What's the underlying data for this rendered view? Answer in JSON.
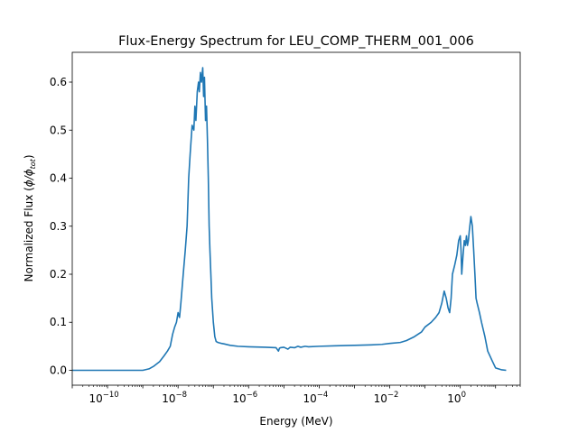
{
  "chart_data": {
    "type": "line",
    "title": "Flux-Energy Spectrum for LEU_COMP_THERM_001_006",
    "xlabel": "Energy (MeV)",
    "ylabel_prefix": "Normalized Flux (",
    "ylabel_math": "ϕ/ϕ",
    "ylabel_sub": "tot",
    "ylabel_suffix": ")",
    "x_scale": "log",
    "xlim": [
      1e-11,
      50
    ],
    "ylim": [
      -0.031,
      0.662
    ],
    "grid": false,
    "line_color": "#1f77b4",
    "x_ticks": [
      {
        "value": 1e-10,
        "base": "10",
        "exp": "−10"
      },
      {
        "value": 1e-08,
        "base": "10",
        "exp": "−8"
      },
      {
        "value": 1e-06,
        "base": "10",
        "exp": "−6"
      },
      {
        "value": 0.0001,
        "base": "10",
        "exp": "−4"
      },
      {
        "value": 0.01,
        "base": "10",
        "exp": "−2"
      },
      {
        "value": 1,
        "base": "10",
        "exp": "0"
      }
    ],
    "y_ticks": [
      {
        "value": 0.0,
        "label": "0.0"
      },
      {
        "value": 0.1,
        "label": "0.1"
      },
      {
        "value": 0.2,
        "label": "0.2"
      },
      {
        "value": 0.3,
        "label": "0.3"
      },
      {
        "value": 0.4,
        "label": "0.4"
      },
      {
        "value": 0.5,
        "label": "0.5"
      },
      {
        "value": 0.6,
        "label": "0.6"
      }
    ],
    "series": [
      {
        "x": [
          1e-11,
          1e-10,
          5e-10,
          1e-09,
          1.5e-09,
          2e-09,
          3e-09,
          4e-09,
          5e-09,
          6e-09,
          7e-09,
          8e-09,
          9e-09,
          1e-08,
          1.1e-08,
          1.2e-08,
          1.4e-08,
          1.6e-08,
          1.8e-08,
          2e-08,
          2.2e-08,
          2.5e-08,
          2.8e-08,
          3e-08,
          3.2e-08,
          3.5e-08,
          3.8e-08,
          4e-08,
          4.3e-08,
          4.6e-08,
          5e-08,
          5.3e-08,
          5.6e-08,
          6e-08,
          6.4e-08,
          6.8e-08,
          7.2e-08,
          7.6e-08,
          8e-08,
          8.5e-08,
          9e-08,
          1e-07,
          1.1e-07,
          1.2e-07,
          1.35e-07,
          1.5e-07,
          1.7e-07,
          2e-07,
          3e-07,
          5e-07,
          1e-06,
          3e-06,
          6e-06,
          7e-06,
          7.5e-06,
          8e-06,
          1e-05,
          1.3e-05,
          1.5e-05,
          2e-05,
          2.5e-05,
          3e-05,
          4e-05,
          5e-05,
          0.0001,
          0.0003,
          0.001,
          0.003,
          0.006,
          0.01,
          0.02,
          0.03,
          0.05,
          0.08,
          0.1,
          0.15,
          0.2,
          0.25,
          0.3,
          0.35,
          0.4,
          0.45,
          0.5,
          0.55,
          0.6,
          0.7,
          0.8,
          0.9,
          1.0,
          1.05,
          1.1,
          1.2,
          1.3,
          1.4,
          1.5,
          1.6,
          1.7,
          1.8,
          2.0,
          2.2,
          2.4,
          2.6,
          2.8,
          3.0,
          3.5,
          4.0,
          5.0,
          6.0,
          8.0,
          10,
          15,
          20
        ],
        "y": [
          0.0,
          0.0,
          0.0,
          0.0,
          0.003,
          0.008,
          0.018,
          0.03,
          0.04,
          0.05,
          0.075,
          0.09,
          0.1,
          0.12,
          0.11,
          0.14,
          0.2,
          0.25,
          0.3,
          0.4,
          0.45,
          0.51,
          0.5,
          0.55,
          0.52,
          0.58,
          0.6,
          0.58,
          0.62,
          0.6,
          0.63,
          0.57,
          0.61,
          0.52,
          0.55,
          0.48,
          0.4,
          0.3,
          0.25,
          0.2,
          0.15,
          0.1,
          0.07,
          0.06,
          0.058,
          0.057,
          0.056,
          0.055,
          0.052,
          0.05,
          0.049,
          0.048,
          0.047,
          0.04,
          0.046,
          0.047,
          0.048,
          0.044,
          0.048,
          0.047,
          0.05,
          0.048,
          0.05,
          0.049,
          0.05,
          0.051,
          0.052,
          0.053,
          0.054,
          0.056,
          0.058,
          0.062,
          0.07,
          0.08,
          0.09,
          0.1,
          0.11,
          0.12,
          0.14,
          0.165,
          0.15,
          0.13,
          0.12,
          0.15,
          0.2,
          0.22,
          0.24,
          0.27,
          0.28,
          0.25,
          0.2,
          0.24,
          0.27,
          0.26,
          0.28,
          0.26,
          0.27,
          0.29,
          0.32,
          0.3,
          0.25,
          0.2,
          0.15,
          0.14,
          0.12,
          0.1,
          0.07,
          0.04,
          0.02,
          0.005,
          0.001,
          0.0
        ]
      }
    ]
  }
}
